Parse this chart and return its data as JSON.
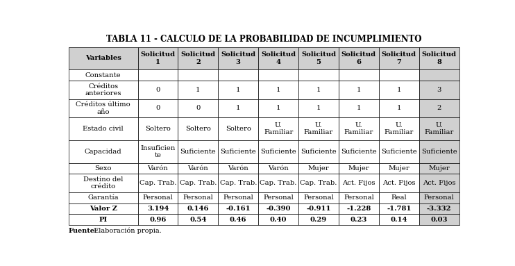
{
  "title": "TABLA 11 - CALCULO DE LA PROBABILIDAD DE INCUMPLIMIENTO",
  "footer": "Fuente: Elaboración propia.",
  "col_headers": [
    "Variables",
    "Solicitud\n1",
    "Solicitud\n2",
    "Solicitud\n3",
    "Solicitud\n4",
    "Solicitud\n5",
    "Solicitud\n6",
    "Solicitud\n7",
    "Solicitud\n8"
  ],
  "rows": [
    [
      "Constante",
      "",
      "",
      "",
      "",
      "",
      "",
      "",
      ""
    ],
    [
      "Créditos\nanteriores",
      "0",
      "1",
      "1",
      "1",
      "1",
      "1",
      "1",
      "3"
    ],
    [
      "Créditos último\naño",
      "0",
      "0",
      "1",
      "1",
      "1",
      "1",
      "1",
      "2"
    ],
    [
      "Estado civil",
      "Soltero",
      "Soltero",
      "Soltero",
      "U.\nFamiliar",
      "U.\nFamiliar",
      "U.\nFamiliar",
      "U.\nFamiliar",
      "U.\nFamiliar"
    ],
    [
      "Capacidad",
      "Insuficien\nte",
      "Suficiente",
      "Suficiente",
      "Suficiente",
      "Suficiente",
      "Suficiente",
      "Suficiente",
      "Suficiente"
    ],
    [
      "Sexo",
      "Varón",
      "Varón",
      "Varón",
      "Varón",
      "Mujer",
      "Mujer",
      "Mujer",
      "Mujer"
    ],
    [
      "Destino del\ncrédito",
      "Cap. Trab.",
      "Cap. Trab.",
      "Cap. Trab.",
      "Cap. Trab.",
      "Cap. Trab.",
      "Act. Fijos",
      "Act. Fijos",
      "Act. Fijos"
    ],
    [
      "Garantía",
      "Personal",
      "Personal",
      "Personal",
      "Personal",
      "Personal",
      "Personal",
      "Real",
      "Personal"
    ],
    [
      "Valor Z",
      "3.194",
      "0.146",
      "-0.161",
      "-0.390",
      "-0.911",
      "-1.228",
      "-1.781",
      "-3.332"
    ],
    [
      "PI",
      "0.96",
      "0.54",
      "0.46",
      "0.40",
      "0.29",
      "0.23",
      "0.14",
      "0.03"
    ]
  ],
  "bold_rows": [
    8,
    9
  ],
  "shaded_col_idx": 8,
  "header_bg": "#d0d0d0",
  "shaded_bg": "#d0d0d0",
  "white_bg": "#ffffff",
  "border_color": "#000000",
  "title_fontsize": 8.5,
  "cell_fontsize": 7.2,
  "footer_fontsize": 7.0,
  "col_widths_rel": [
    1.72,
    1.0,
    1.0,
    1.0,
    1.0,
    1.0,
    1.0,
    1.0,
    1.0
  ],
  "row_heights_rel": [
    2.1,
    1.0,
    1.7,
    1.7,
    2.1,
    2.1,
    1.0,
    1.7,
    1.0,
    1.0,
    1.0
  ]
}
